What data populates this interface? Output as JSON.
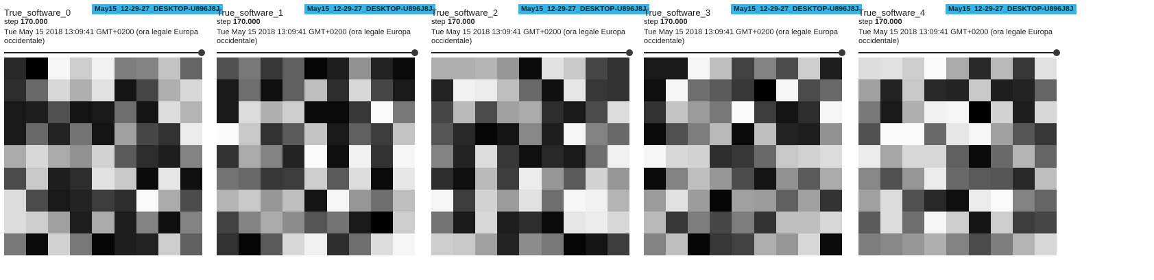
{
  "panels": [
    {
      "title": "True_software_0",
      "run": "May15_12-29-27_DESKTOP-U896J8J",
      "step_label": "step",
      "step_value": "170.000",
      "timestamp": "Tue May 15 2018 13:09:41 GMT+0200 (ora legale Europa occidentale)",
      "slider_value": 1.0,
      "image": [
        [
          40,
          0,
          245,
          205,
          240,
          125,
          130,
          195,
          100
        ],
        [
          45,
          105,
          215,
          175,
          225,
          20,
          70,
          175,
          215
        ],
        [
          25,
          30,
          80,
          20,
          25,
          110,
          20,
          220,
          180
        ],
        [
          25,
          105,
          35,
          115,
          20,
          160,
          70,
          50,
          235
        ],
        [
          170,
          215,
          170,
          145,
          210,
          90,
          45,
          30,
          130
        ],
        [
          75,
          200,
          30,
          45,
          225,
          200,
          10,
          230,
          15
        ],
        [
          220,
          75,
          25,
          35,
          60,
          45,
          250,
          170,
          75
        ],
        [
          220,
          205,
          160,
          30,
          170,
          30,
          130,
          15,
          130
        ],
        [
          120,
          10,
          210,
          120,
          5,
          30,
          35,
          205,
          95
        ]
      ]
    },
    {
      "title": "True_software_1",
      "run": "May15_12-29-27_DESKTOP-U896J8J",
      "step_label": "step",
      "step_value": "170.000",
      "timestamp": "Tue May 15 2018 13:09:41 GMT+0200 (ora legale Europa occidentale)",
      "slider_value": 1.0,
      "image": [
        [
          80,
          120,
          55,
          95,
          5,
          30,
          145,
          35,
          10
        ],
        [
          25,
          110,
          15,
          95,
          190,
          45,
          215,
          70,
          25
        ],
        [
          25,
          220,
          175,
          205,
          10,
          10,
          55,
          250,
          120
        ],
        [
          250,
          200,
          50,
          90,
          195,
          25,
          95,
          60,
          195
        ],
        [
          50,
          170,
          130,
          35,
          250,
          15,
          240,
          50,
          245
        ],
        [
          115,
          105,
          55,
          60,
          205,
          90,
          220,
          10,
          230
        ],
        [
          180,
          200,
          150,
          190,
          20,
          245,
          150,
          110,
          190
        ],
        [
          65,
          130,
          170,
          140,
          85,
          115,
          25,
          0,
          205
        ],
        [
          50,
          5,
          90,
          215,
          240,
          45,
          110,
          220,
          245
        ]
      ]
    },
    {
      "title": "True_software_2",
      "run": "May15_12-29-27_DESKTOP-U896J8J",
      "step_label": "step",
      "step_value": "170.000",
      "timestamp": "Tue May 15 2018 13:09:41 GMT+0200 (ora legale Europa occidentale)",
      "slider_value": 1.0,
      "image": [
        [
          175,
          175,
          180,
          150,
          10,
          225,
          200,
          70,
          50
        ],
        [
          35,
          240,
          235,
          190,
          105,
          15,
          230,
          55,
          50
        ],
        [
          70,
          185,
          75,
          160,
          170,
          45,
          25,
          75,
          220
        ],
        [
          85,
          40,
          5,
          20,
          135,
          30,
          245,
          130,
          105
        ],
        [
          130,
          35,
          220,
          55,
          15,
          40,
          25,
          110,
          240
        ],
        [
          45,
          15,
          185,
          60,
          235,
          150,
          90,
          210,
          150
        ],
        [
          245,
          60,
          210,
          155,
          225,
          110,
          245,
          240,
          180
        ],
        [
          115,
          25,
          215,
          30,
          45,
          10,
          230,
          235,
          215
        ],
        [
          205,
          200,
          160,
          35,
          140,
          120,
          5,
          20,
          60
        ]
      ]
    },
    {
      "title": "True_software_3",
      "run": "May15_12-29-27_DESKTOP-U896J8J",
      "step_label": "step",
      "step_value": "170.000",
      "timestamp": "Tue May 15 2018 13:09:41 GMT+0200 (ora legale Europa occidentale)",
      "slider_value": 1.0,
      "image": [
        [
          25,
          25,
          245,
          190,
          65,
          130,
          75,
          205,
          30
        ],
        [
          15,
          245,
          110,
          90,
          55,
          0,
          245,
          75,
          105
        ],
        [
          50,
          195,
          155,
          120,
          250,
          60,
          20,
          45,
          245
        ],
        [
          10,
          80,
          125,
          185,
          10,
          190,
          35,
          30,
          145
        ],
        [
          245,
          215,
          210,
          45,
          55,
          105,
          200,
          210,
          220
        ],
        [
          10,
          130,
          190,
          150,
          75,
          20,
          145,
          90,
          170
        ],
        [
          155,
          225,
          155,
          5,
          160,
          155,
          95,
          160,
          50
        ],
        [
          185,
          55,
          125,
          70,
          125,
          50,
          190,
          190,
          215
        ],
        [
          130,
          190,
          5,
          55,
          65,
          175,
          150,
          215,
          10
        ]
      ]
    },
    {
      "title": "True_software_4",
      "run": "May15_12-29-27_DESKTOP-U896J8J",
      "step_label": "step",
      "step_value": "170.000",
      "timestamp": "Tue May 15 2018 13:09:41 GMT+0200 (ora legale Europa occidentale)",
      "slider_value": 1.0,
      "image": [
        [
          220,
          225,
          205,
          250,
          170,
          40,
          185,
          55,
          225
        ],
        [
          160,
          35,
          200,
          40,
          35,
          200,
          30,
          35,
          100
        ],
        [
          120,
          25,
          175,
          240,
          245,
          0,
          210,
          30,
          215
        ],
        [
          80,
          250,
          250,
          105,
          230,
          245,
          160,
          85,
          55
        ],
        [
          235,
          165,
          215,
          215,
          95,
          10,
          105,
          180,
          100
        ],
        [
          135,
          80,
          150,
          235,
          105,
          90,
          85,
          40,
          190
        ],
        [
          160,
          220,
          80,
          40,
          15,
          235,
          250,
          130,
          100
        ],
        [
          90,
          220,
          110,
          245,
          205,
          20,
          205,
          60,
          70
        ],
        [
          125,
          135,
          150,
          175,
          130,
          75,
          125,
          180,
          215
        ]
      ]
    }
  ]
}
